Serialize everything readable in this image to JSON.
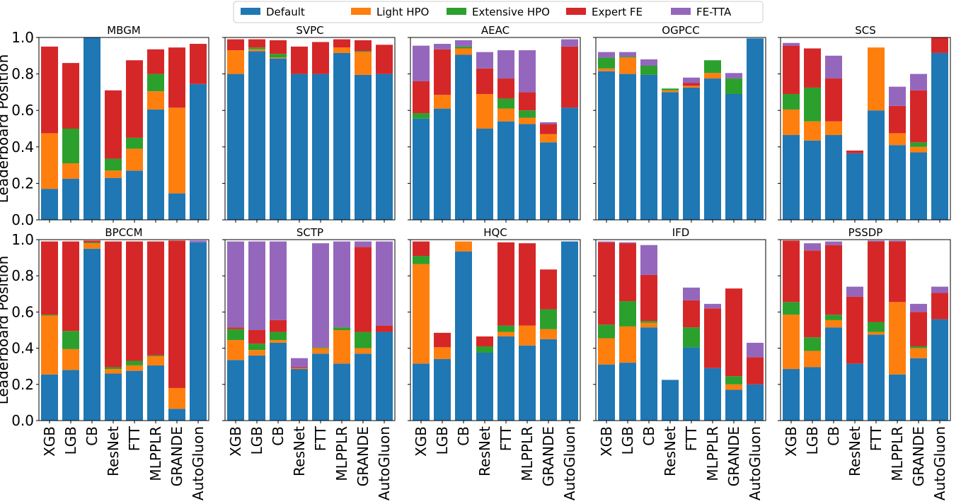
{
  "chart_data": {
    "type": "bar",
    "stacking": "cumulative levels (each series segment tops out at the listed value)",
    "ylabel": "Leaderboard Position",
    "ylim": [
      0,
      1.0
    ],
    "yticks": [
      "0.0",
      "0.2",
      "0.4",
      "0.6",
      "0.8",
      "1.0"
    ],
    "grid": false,
    "legend_position": "top-center",
    "categories": [
      "XGB",
      "LGB",
      "CB",
      "ResNet",
      "FTT",
      "MLPPLR",
      "GRANDE",
      "AutoGluon"
    ],
    "series": [
      {
        "name": "Default",
        "color": "#1f77b4"
      },
      {
        "name": "Light HPO",
        "color": "#ff7f0e"
      },
      {
        "name": "Extensive HPO",
        "color": "#2ca02c"
      },
      {
        "name": "Expert FE",
        "color": "#d62728"
      },
      {
        "name": "FE-TTA",
        "color": "#9467bd"
      }
    ],
    "panels": [
      {
        "title": "MBGM",
        "levels": [
          [
            0.17,
            0.475,
            0.475,
            0.95,
            0.95
          ],
          [
            0.225,
            0.31,
            0.5,
            0.86,
            0.86
          ],
          [
            1.0,
            1.0,
            1.0,
            1.0,
            1.0
          ],
          [
            0.23,
            0.27,
            0.335,
            0.71,
            0.71
          ],
          [
            0.27,
            0.39,
            0.45,
            0.875,
            0.875
          ],
          [
            0.605,
            0.705,
            0.8,
            0.935,
            0.935
          ],
          [
            0.145,
            0.615,
            0.615,
            0.945,
            0.945
          ],
          [
            0.745,
            0.745,
            0.745,
            0.965,
            0.965
          ]
        ]
      },
      {
        "title": "SVPC",
        "levels": [
          [
            0.8,
            0.93,
            0.93,
            0.99,
            0.99
          ],
          [
            0.925,
            0.935,
            0.945,
            0.99,
            0.99
          ],
          [
            0.885,
            0.89,
            0.91,
            0.985,
            0.985
          ],
          [
            0.8,
            0.8,
            0.8,
            0.95,
            0.95
          ],
          [
            0.8,
            0.8,
            0.8,
            0.975,
            0.975
          ],
          [
            0.915,
            0.945,
            0.945,
            0.99,
            0.99
          ],
          [
            0.795,
            0.92,
            0.925,
            0.985,
            0.985
          ],
          [
            0.8,
            0.8,
            0.8,
            0.96,
            0.96
          ]
        ]
      },
      {
        "title": "AEAC",
        "levels": [
          [
            0.555,
            0.555,
            0.585,
            0.76,
            0.955
          ],
          [
            0.61,
            0.685,
            0.685,
            0.935,
            0.965
          ],
          [
            0.905,
            0.94,
            0.95,
            0.95,
            0.985
          ],
          [
            0.5,
            0.69,
            0.69,
            0.83,
            0.92
          ],
          [
            0.54,
            0.61,
            0.665,
            0.775,
            0.93
          ],
          [
            0.525,
            0.56,
            0.6,
            0.7,
            0.93
          ],
          [
            0.425,
            0.47,
            0.47,
            0.525,
            0.535
          ],
          [
            0.615,
            0.615,
            0.615,
            0.95,
            0.99
          ]
        ]
      },
      {
        "title": "OGPCC",
        "levels": [
          [
            0.815,
            0.83,
            0.89,
            0.89,
            0.92
          ],
          [
            0.8,
            0.89,
            0.895,
            0.895,
            0.92
          ],
          [
            0.795,
            0.795,
            0.845,
            0.845,
            0.88
          ],
          [
            0.7,
            0.71,
            0.72,
            0.72,
            0.72
          ],
          [
            0.725,
            0.735,
            0.735,
            0.75,
            0.78
          ],
          [
            0.775,
            0.805,
            0.875,
            0.875,
            0.875
          ],
          [
            0.69,
            0.69,
            0.775,
            0.775,
            0.805
          ],
          [
            0.995,
            0.995,
            0.995,
            0.995,
            0.995
          ]
        ]
      },
      {
        "title": "SCS",
        "levels": [
          [
            0.465,
            0.605,
            0.69,
            0.955,
            0.97
          ],
          [
            0.435,
            0.54,
            0.725,
            0.94,
            0.94
          ],
          [
            0.465,
            0.54,
            0.54,
            0.775,
            0.9
          ],
          [
            0.365,
            0.365,
            0.365,
            0.38,
            0.38
          ],
          [
            0.6,
            0.945,
            0.945,
            0.945,
            0.945
          ],
          [
            0.41,
            0.475,
            0.475,
            0.625,
            0.73
          ],
          [
            0.37,
            0.4,
            0.425,
            0.71,
            0.8
          ],
          [
            0.915,
            0.915,
            0.915,
            1.0,
            1.0
          ]
        ]
      },
      {
        "title": "BPCCM",
        "levels": [
          [
            0.255,
            0.58,
            0.585,
            0.99,
            0.99
          ],
          [
            0.28,
            0.395,
            0.495,
            0.99,
            0.99
          ],
          [
            0.95,
            0.98,
            0.985,
            0.995,
            0.995
          ],
          [
            0.26,
            0.285,
            0.295,
            0.99,
            0.99
          ],
          [
            0.275,
            0.305,
            0.33,
            0.99,
            0.99
          ],
          [
            0.305,
            0.355,
            0.36,
            0.99,
            0.99
          ],
          [
            0.065,
            0.18,
            0.18,
            0.995,
            0.995
          ],
          [
            0.985,
            0.985,
            0.985,
            0.985,
            0.995
          ]
        ]
      },
      {
        "title": "SCTP",
        "levels": [
          [
            0.335,
            0.445,
            0.505,
            0.515,
            0.99
          ],
          [
            0.36,
            0.39,
            0.425,
            0.5,
            0.99
          ],
          [
            0.43,
            0.445,
            0.49,
            0.555,
            0.99
          ],
          [
            0.285,
            0.29,
            0.29,
            0.295,
            0.345
          ],
          [
            0.37,
            0.4,
            0.405,
            0.405,
            0.98
          ],
          [
            0.315,
            0.5,
            0.515,
            0.515,
            0.99
          ],
          [
            0.37,
            0.4,
            0.49,
            0.96,
            0.99
          ],
          [
            0.49,
            0.49,
            0.49,
            0.525,
            0.99
          ]
        ]
      },
      {
        "title": "HQC",
        "levels": [
          [
            0.315,
            0.865,
            0.91,
            0.99,
            0.99
          ],
          [
            0.34,
            0.405,
            0.405,
            0.485,
            0.485
          ],
          [
            0.935,
            0.99,
            0.99,
            0.99,
            0.99
          ],
          [
            0.375,
            0.375,
            0.41,
            0.465,
            0.465
          ],
          [
            0.465,
            0.49,
            0.525,
            0.985,
            0.985
          ],
          [
            0.415,
            0.525,
            0.525,
            0.98,
            0.98
          ],
          [
            0.45,
            0.505,
            0.615,
            0.835,
            0.835
          ],
          [
            0.99,
            0.99,
            0.99,
            0.99,
            0.99
          ]
        ]
      },
      {
        "title": "IFD",
        "levels": [
          [
            0.31,
            0.455,
            0.53,
            0.985,
            0.99
          ],
          [
            0.32,
            0.52,
            0.66,
            0.98,
            0.985
          ],
          [
            0.515,
            0.54,
            0.55,
            0.805,
            0.97
          ],
          [
            0.225,
            0.225,
            0.225,
            0.225,
            0.225
          ],
          [
            0.405,
            0.405,
            0.515,
            0.665,
            0.735
          ],
          [
            0.29,
            0.29,
            0.29,
            0.62,
            0.645
          ],
          [
            0.17,
            0.2,
            0.245,
            0.73,
            0.73
          ],
          [
            0.2,
            0.2,
            0.2,
            0.35,
            0.43
          ]
        ]
      },
      {
        "title": "PSSDP",
        "levels": [
          [
            0.285,
            0.585,
            0.655,
            0.995,
            0.995
          ],
          [
            0.295,
            0.385,
            0.46,
            0.94,
            0.98
          ],
          [
            0.515,
            0.555,
            0.585,
            0.97,
            0.99
          ],
          [
            0.315,
            0.315,
            0.315,
            0.685,
            0.74
          ],
          [
            0.475,
            0.49,
            0.545,
            0.99,
            0.995
          ],
          [
            0.255,
            0.655,
            0.655,
            0.99,
            0.995
          ],
          [
            0.345,
            0.4,
            0.41,
            0.6,
            0.645
          ],
          [
            0.56,
            0.56,
            0.56,
            0.705,
            0.74
          ]
        ]
      }
    ]
  }
}
